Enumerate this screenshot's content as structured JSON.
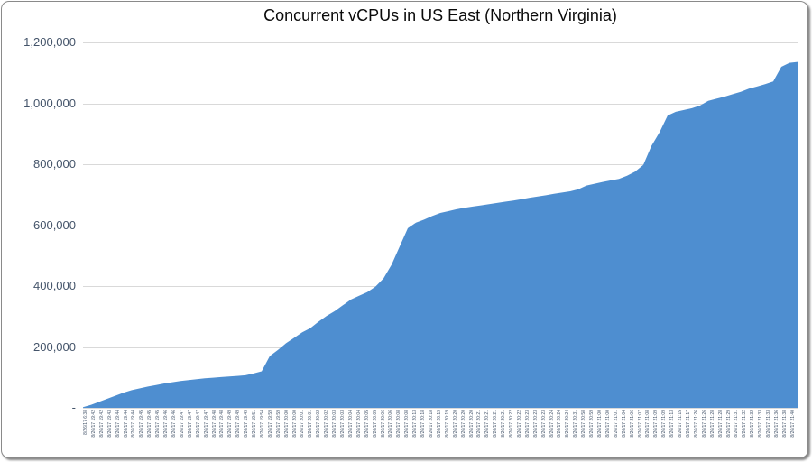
{
  "window": {
    "background": "#FFFFFF",
    "border_color": "#8A8A8A"
  },
  "chart_data": {
    "type": "area",
    "title": "Concurrent vCPUs in US East (Northern Virginia)",
    "xlabel": "",
    "ylabel": "",
    "legend": "none",
    "grid": "horizontal",
    "gridline_color": "#D9D9D9",
    "axis_label_color": "#44546A",
    "title_color": "#0A0A0A",
    "ylim": [
      0,
      1200000
    ],
    "y_ticks": [
      {
        "value": 1200000,
        "label": "1,200,000"
      },
      {
        "value": 1000000,
        "label": "1,000,000"
      },
      {
        "value": 800000,
        "label": "800,000"
      },
      {
        "value": 600000,
        "label": "600,000"
      },
      {
        "value": 400000,
        "label": "400,000"
      },
      {
        "value": 200000,
        "label": "200,000"
      },
      {
        "value": 0,
        "label": "-"
      }
    ],
    "x_labels": [
      "8/26/17 6:38",
      "8/26/17 19:42",
      "8/26/17 19:42",
      "8/26/17 19:43",
      "8/26/17 19:44",
      "8/26/17 19:44",
      "8/26/17 19:44",
      "8/26/17 19:45",
      "8/26/17 19:45",
      "8/26/17 19:45",
      "8/26/17 19:46",
      "8/26/17 19:46",
      "8/26/17 19:47",
      "8/26/17 19:47",
      "8/26/17 19:47",
      "8/26/17 19:47",
      "8/26/17 19:48",
      "8/26/17 19:48",
      "8/26/17 19:49",
      "8/26/17 19:49",
      "8/26/17 19:49",
      "8/26/17 19:51",
      "8/26/17 19:54",
      "8/26/17 19:59",
      "8/26/17 19:59",
      "8/26/17 20:00",
      "8/26/17 20:00",
      "8/26/17 20:01",
      "8/26/17 20:01",
      "8/26/17 20:02",
      "8/26/17 20:02",
      "8/26/17 20:03",
      "8/26/17 20:03",
      "8/26/17 20:04",
      "8/26/17 20:04",
      "8/26/17 20:05",
      "8/26/17 20:05",
      "8/26/17 20:06",
      "8/26/17 20:06",
      "8/26/17 20:08",
      "8/26/17 20:08",
      "8/26/17 20:13",
      "8/26/17 20:18",
      "8/26/17 20:18",
      "8/26/17 20:19",
      "8/26/17 20:19",
      "8/26/17 20:20",
      "8/26/17 20:20",
      "8/26/17 20:20",
      "8/26/17 20:21",
      "8/26/17 20:21",
      "8/26/17 20:21",
      "8/26/17 20:21",
      "8/26/17 20:22",
      "8/26/17 20:22",
      "8/26/17 20:23",
      "8/26/17 20:23",
      "8/26/17 20:23",
      "8/26/17 20:24",
      "8/26/17 20:24",
      "8/26/17 20:24",
      "8/26/17 20:31",
      "8/26/17 20:58",
      "8/26/17 20:59",
      "8/26/17 21:00",
      "8/26/17 21:00",
      "8/26/17 21:01",
      "8/26/17 21:04",
      "8/26/17 21:06",
      "8/26/17 21:07",
      "8/26/17 21:08",
      "8/26/17 21:09",
      "8/26/17 21:09",
      "8/26/17 21:13",
      "8/26/17 21:15",
      "8/26/17 21:17",
      "8/26/17 21:26",
      "8/26/17 21:26",
      "8/26/17 21:28",
      "8/26/17 21:28",
      "8/26/17 21:29",
      "8/26/17 21:31",
      "8/26/17 21:32",
      "8/26/17 21:32",
      "8/26/17 21:33",
      "8/26/17 21:33",
      "8/26/17 21:36",
      "8/26/17 21:38",
      "8/26/17 21:40"
    ],
    "series": [
      {
        "name": "Concurrent vCPUs",
        "color": "#4E8ED0",
        "values": [
          2000,
          10000,
          20000,
          30000,
          40000,
          50000,
          58000,
          64000,
          70000,
          75000,
          80000,
          84000,
          88000,
          91000,
          94000,
          97000,
          99000,
          101000,
          103000,
          105000,
          107000,
          113000,
          120000,
          170000,
          190000,
          212000,
          230000,
          248000,
          262000,
          283000,
          302000,
          318000,
          337000,
          356000,
          368000,
          380000,
          398000,
          425000,
          470000,
          530000,
          590000,
          608000,
          618000,
          630000,
          640000,
          646000,
          652000,
          657000,
          661000,
          665000,
          669000,
          673000,
          677000,
          681000,
          685000,
          690000,
          694000,
          698000,
          703000,
          707000,
          711000,
          718000,
          730000,
          736000,
          742000,
          747000,
          752000,
          762000,
          776000,
          798000,
          860000,
          905000,
          960000,
          972000,
          978000,
          984000,
          993000,
          1008000,
          1015000,
          1022000,
          1030000,
          1038000,
          1048000,
          1055000,
          1063000,
          1072000,
          1120000,
          1133000,
          1136000
        ]
      }
    ]
  }
}
